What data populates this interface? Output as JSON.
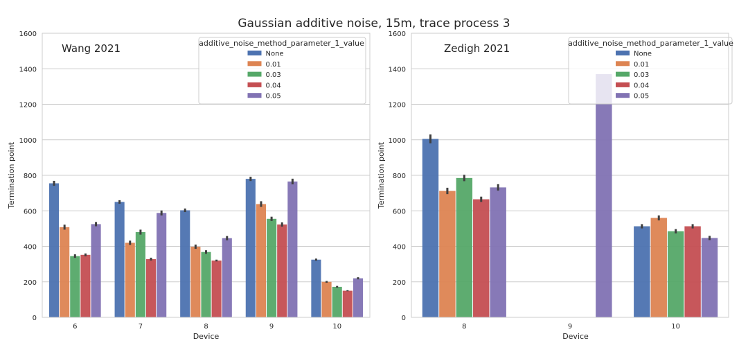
{
  "suptitle": "Gaussian additive noise, 15m, trace process 3",
  "legend_title": "additive_noise_method_parameter_1_value",
  "series_names": [
    "None",
    "0.01",
    "0.03",
    "0.04",
    "0.05"
  ],
  "series_colors": [
    "#4c72b0",
    "#dd8452",
    "#55a868",
    "#c44e52",
    "#8172b3"
  ],
  "chart_data": [
    {
      "type": "bar",
      "title": "Wang 2021",
      "xlabel": "Device",
      "ylabel": "Termination point",
      "ylim": [
        0,
        1600
      ],
      "yticks": [
        0,
        200,
        400,
        600,
        800,
        1000,
        1200,
        1400,
        1600
      ],
      "grid": true,
      "legend_position": "top-right",
      "categories": [
        "6",
        "7",
        "8",
        "9",
        "10"
      ],
      "series": [
        {
          "name": "None",
          "values": [
            755,
            650,
            603,
            780,
            325
          ],
          "errors": [
            14,
            10,
            10,
            12,
            6
          ]
        },
        {
          "name": "0.01",
          "values": [
            508,
            420,
            398,
            638,
            200
          ],
          "errors": [
            14,
            12,
            12,
            16,
            5
          ]
        },
        {
          "name": "0.03",
          "values": [
            345,
            480,
            368,
            555,
            172
          ],
          "errors": [
            10,
            14,
            10,
            12,
            5
          ]
        },
        {
          "name": "0.04",
          "values": [
            352,
            328,
            320,
            523,
            150
          ],
          "errors": [
            8,
            8,
            5,
            12,
            3
          ]
        },
        {
          "name": "0.05",
          "values": [
            525,
            588,
            446,
            765,
            220
          ],
          "errors": [
            12,
            14,
            12,
            16,
            6
          ]
        }
      ]
    },
    {
      "type": "bar",
      "title": "Zedigh 2021",
      "xlabel": "Device",
      "ylabel": "Termination point",
      "ylim": [
        0,
        1600
      ],
      "yticks": [
        0,
        200,
        400,
        600,
        800,
        1000,
        1200,
        1400,
        1600
      ],
      "grid": true,
      "legend_position": "top-right",
      "categories": [
        "8",
        "9",
        "10"
      ],
      "series": [
        {
          "name": "None",
          "values": [
            1005,
            null,
            513
          ],
          "errors": [
            25,
            null,
            12
          ]
        },
        {
          "name": "0.01",
          "values": [
            712,
            null,
            560
          ],
          "errors": [
            18,
            null,
            14
          ]
        },
        {
          "name": "0.03",
          "values": [
            785,
            null,
            485
          ],
          "errors": [
            18,
            null,
            12
          ]
        },
        {
          "name": "0.04",
          "values": [
            665,
            null,
            513
          ],
          "errors": [
            15,
            null,
            12
          ]
        },
        {
          "name": "0.05",
          "values": [
            732,
            1370,
            447
          ],
          "errors": [
            18,
            null,
            12
          ]
        }
      ]
    }
  ]
}
